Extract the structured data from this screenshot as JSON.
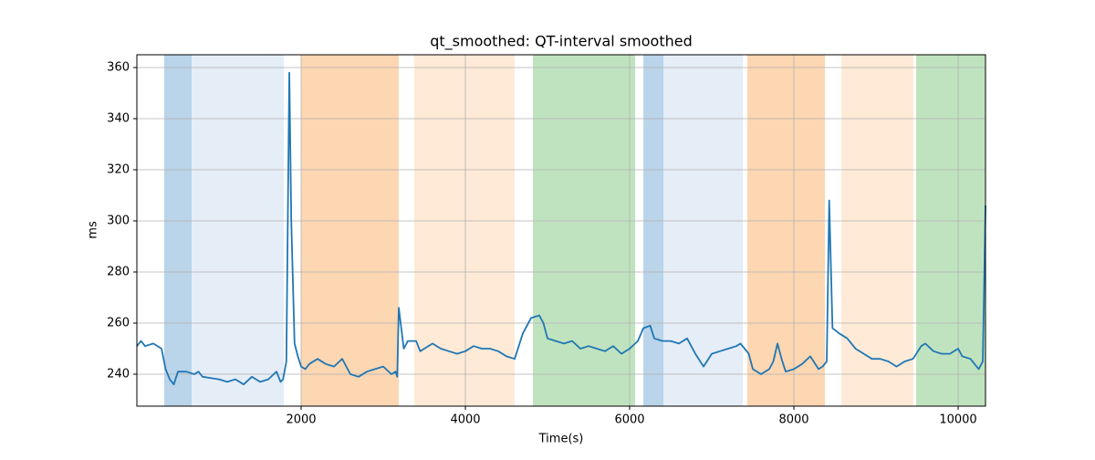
{
  "chart_data": {
    "type": "line",
    "title": "qt_smoothed: QT-interval smoothed",
    "xlabel": "Time(s)",
    "ylabel": "ms",
    "xlim": [
      0,
      10333
    ],
    "ylim": [
      227.5,
      365
    ],
    "xticks": [
      2000,
      4000,
      6000,
      8000,
      10000
    ],
    "yticks": [
      240,
      260,
      280,
      300,
      320,
      340,
      360
    ],
    "grid": true,
    "spans": [
      {
        "start": 333,
        "end": 667,
        "color": "#bad4e9"
      },
      {
        "start": 667,
        "end": 1789,
        "color": "#e5edf7"
      },
      {
        "start": 2000,
        "end": 3189,
        "color": "#fdd6b2"
      },
      {
        "start": 3378,
        "end": 4600,
        "color": "#feead6"
      },
      {
        "start": 4822,
        "end": 6067,
        "color": "#c0e3bf"
      },
      {
        "start": 6167,
        "end": 6411,
        "color": "#bad4e9"
      },
      {
        "start": 6411,
        "end": 7378,
        "color": "#e5edf7"
      },
      {
        "start": 7433,
        "end": 8378,
        "color": "#fdd6b2"
      },
      {
        "start": 8578,
        "end": 9456,
        "color": "#feead6"
      },
      {
        "start": 9489,
        "end": 10333,
        "color": "#c0e3bf"
      }
    ],
    "x": [
      0,
      50,
      100,
      200,
      300,
      350,
      400,
      450,
      500,
      600,
      700,
      750,
      800,
      1000,
      1100,
      1200,
      1300,
      1400,
      1500,
      1600,
      1700,
      1750,
      1780,
      1820,
      1856,
      1880,
      1920,
      1960,
      2000,
      2050,
      2100,
      2200,
      2300,
      2400,
      2500,
      2600,
      2700,
      2800,
      2900,
      3000,
      3100,
      3150,
      3170,
      3189,
      3250,
      3300,
      3400,
      3450,
      3500,
      3600,
      3700,
      3800,
      3900,
      4000,
      4100,
      4200,
      4300,
      4400,
      4500,
      4600,
      4700,
      4800,
      4900,
      4950,
      5000,
      5100,
      5200,
      5300,
      5400,
      5500,
      5600,
      5700,
      5800,
      5900,
      6000,
      6100,
      6167,
      6250,
      6300,
      6400,
      6500,
      6600,
      6700,
      6800,
      6900,
      7000,
      7100,
      7200,
      7300,
      7350,
      7400,
      7450,
      7500,
      7600,
      7700,
      7750,
      7800,
      7850,
      7900,
      8000,
      8100,
      8200,
      8300,
      8350,
      8400,
      8430,
      8470,
      8550,
      8650,
      8750,
      8850,
      8950,
      9050,
      9150,
      9250,
      9350,
      9450,
      9550,
      9600,
      9700,
      9800,
      9900,
      10000,
      10050,
      10150,
      10200,
      10250,
      10300,
      10333
    ],
    "series": [
      {
        "name": "qt_smoothed",
        "color": "#1f77b4",
        "values": [
          251,
          253,
          251,
          252,
          250,
          242,
          238,
          236,
          241,
          241,
          240,
          241,
          239,
          238,
          237,
          238,
          236,
          239,
          237,
          238,
          241,
          237,
          238,
          245,
          358,
          300,
          252,
          247,
          243,
          242,
          244,
          246,
          244,
          243,
          246,
          240,
          239,
          241,
          242,
          243,
          240,
          241,
          239,
          266,
          250,
          253,
          253,
          249,
          250,
          252,
          250,
          249,
          248,
          249,
          251,
          250,
          250,
          249,
          247,
          246,
          256,
          262,
          263,
          260,
          254,
          253,
          252,
          253,
          250,
          251,
          250,
          249,
          251,
          248,
          250,
          253,
          258,
          259,
          254,
          253,
          253,
          252,
          254,
          248,
          243,
          248,
          249,
          250,
          251,
          252,
          250,
          248,
          242,
          240,
          242,
          245,
          252,
          246,
          241,
          242,
          244,
          247,
          242,
          243,
          245,
          308,
          258,
          256,
          254,
          250,
          248,
          246,
          246,
          245,
          243,
          245,
          246,
          251,
          252,
          249,
          248,
          248,
          250,
          247,
          246,
          244,
          242,
          245,
          306
        ]
      }
    ]
  }
}
